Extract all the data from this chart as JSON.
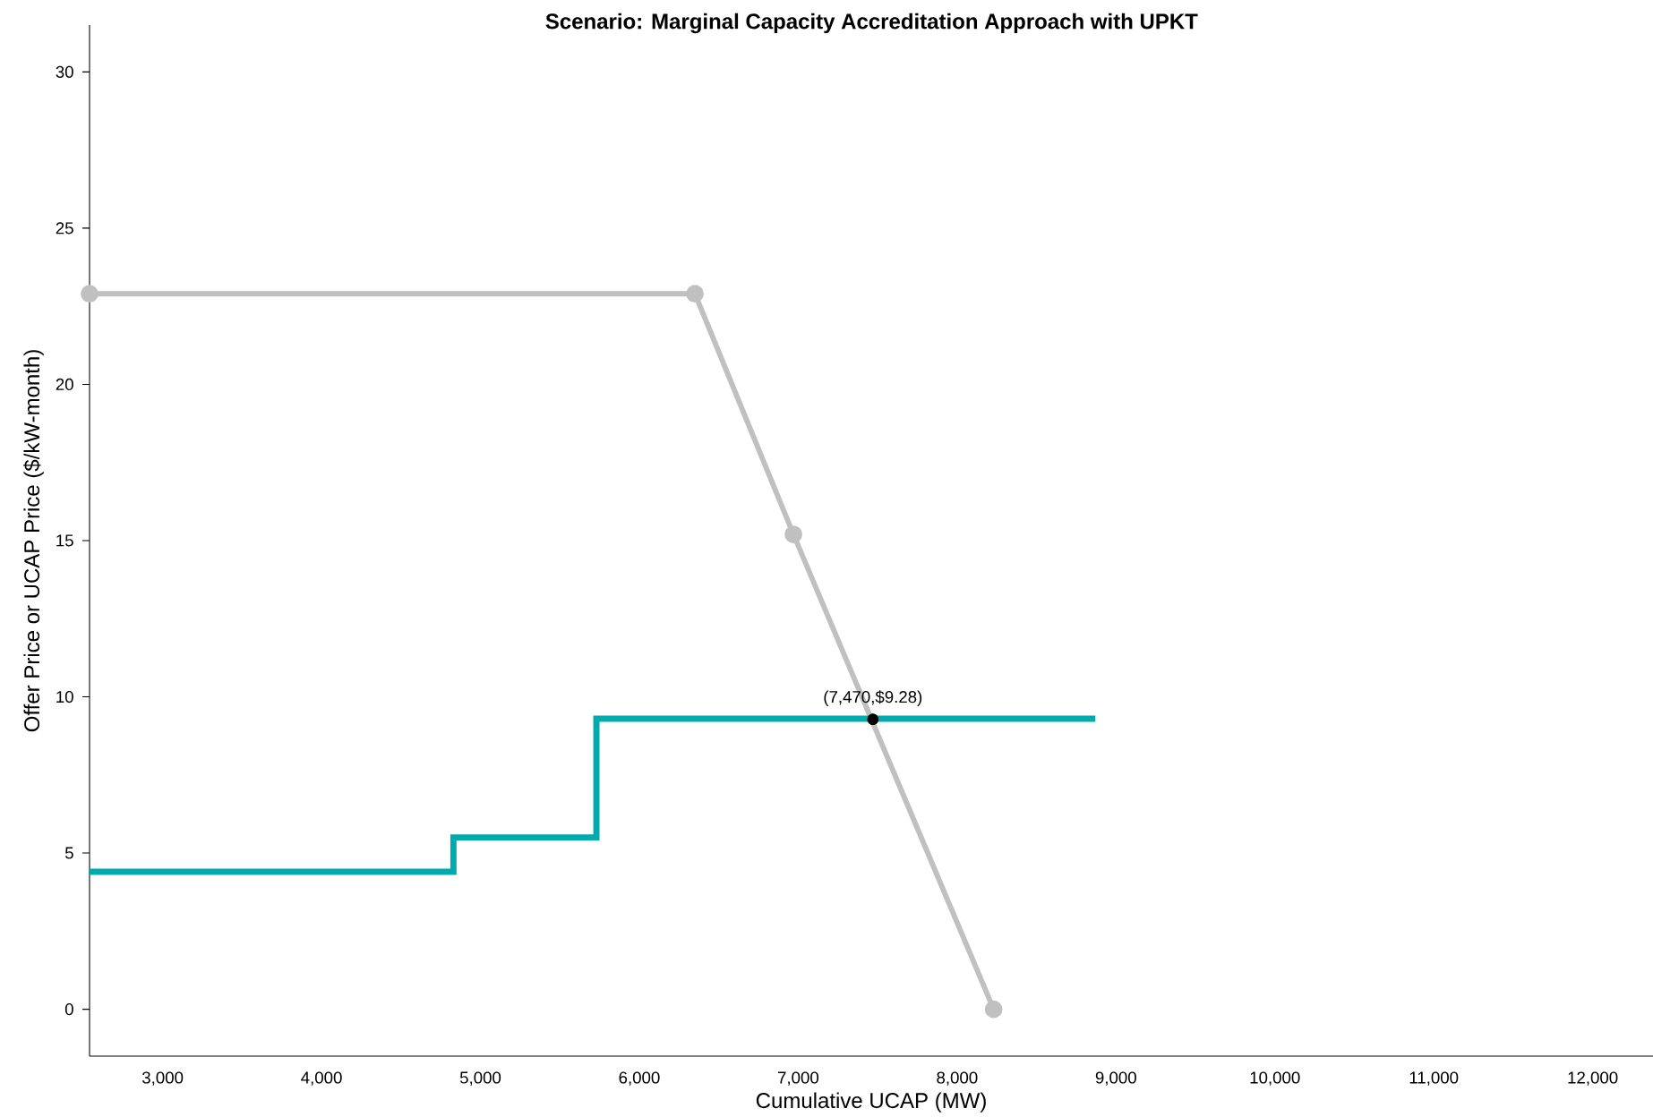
{
  "chart_data": {
    "type": "line",
    "title": "Scenario: Marginal Capacity Accreditation Approach with UPKT",
    "xlabel": "Cumulative UCAP (MW)",
    "ylabel": "Offer Price or UCAP Price ($/kW-month)",
    "xlim": [
      2540,
      12380
    ],
    "ylim": [
      -1.5,
      31.5
    ],
    "xticks": [
      {
        "value": 3000,
        "label": "3,000"
      },
      {
        "value": 4000,
        "label": "4,000"
      },
      {
        "value": 5000,
        "label": "5,000"
      },
      {
        "value": 6000,
        "label": "6,000"
      },
      {
        "value": 7000,
        "label": "7,000"
      },
      {
        "value": 8000,
        "label": "8,000"
      },
      {
        "value": 9000,
        "label": "9,000"
      },
      {
        "value": 10000,
        "label": "10,000"
      },
      {
        "value": 11000,
        "label": "11,000"
      },
      {
        "value": 12000,
        "label": "12,000"
      }
    ],
    "yticks": [
      0,
      5,
      10,
      15,
      20,
      25,
      30
    ],
    "grid": false,
    "series": [
      {
        "color": "#c0c0c0",
        "marker": "circle",
        "x": [
          2540,
          6350,
          6970,
          8230
        ],
        "values": [
          22.9,
          22.9,
          15.2,
          0
        ]
      },
      {
        "type": "step",
        "color": "#00aaad",
        "marker": "none",
        "x": [
          2540,
          4830,
          5730,
          8870
        ],
        "values": [
          4.4,
          5.5,
          9.3,
          9.3
        ]
      },
      {
        "type": "scatter",
        "color": "#000000",
        "marker": "circle",
        "x": [
          7470
        ],
        "values": [
          9.28
        ]
      }
    ],
    "annotations": [
      {
        "text": "(7,470,$9.28)",
        "x": 7470,
        "y": 9.28
      }
    ]
  }
}
